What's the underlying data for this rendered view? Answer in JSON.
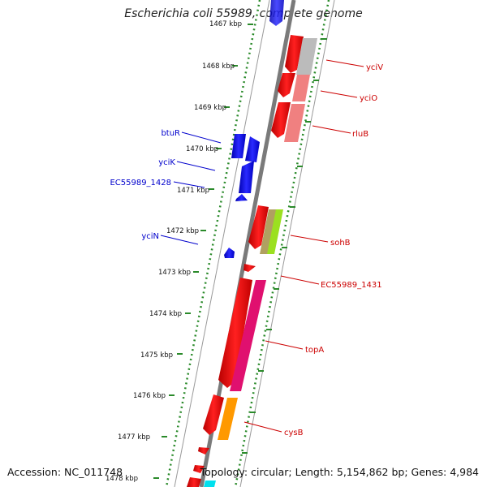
{
  "title": "Escherichia coli 55989, complete genome",
  "footer": {
    "accession": "Accession: NC_011748",
    "topology": "Topology: circular; Length: 5,154,862 bp; Genes: 4,984"
  },
  "ticks": [
    "1467 kbp",
    "1468 kbp",
    "1469 kbp",
    "1470 kbp",
    "1471 kbp",
    "1472 kbp",
    "1473 kbp",
    "1474 kbp",
    "1475 kbp",
    "1476 kbp",
    "1477 kbp",
    "1478 kbp"
  ],
  "left_genes": [
    {
      "name": "btuR",
      "color": "#0000cc"
    },
    {
      "name": "yciK",
      "color": "#0000cc"
    },
    {
      "name": "EC55989_1428",
      "color": "#0000cc"
    },
    {
      "name": "yciN",
      "color": "#0000cc"
    }
  ],
  "right_genes": [
    {
      "name": "yciV",
      "color": "#cc0000"
    },
    {
      "name": "yciO",
      "color": "#cc0000"
    },
    {
      "name": "rluB",
      "color": "#cc0000"
    },
    {
      "name": "sohB",
      "color": "#cc0000"
    },
    {
      "name": "EC55989_1431",
      "color": "#cc0000"
    },
    {
      "name": "topA",
      "color": "#cc0000"
    },
    {
      "name": "cysB",
      "color": "#cc0000"
    }
  ],
  "colors": {
    "forward": "#ee0000",
    "reverse": "#1010ee",
    "backbone": "#888888",
    "tick": "#2a8a2a"
  }
}
